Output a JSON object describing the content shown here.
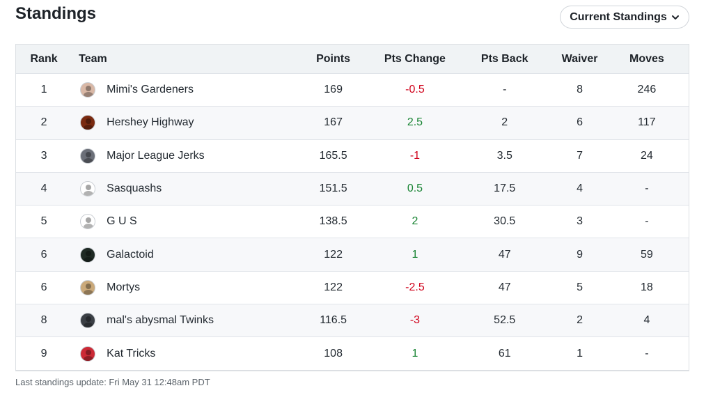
{
  "header": {
    "title": "Standings",
    "view_label": "Current Standings"
  },
  "columns": {
    "rank": "Rank",
    "team": "Team",
    "points": "Points",
    "pts_change": "Pts Change",
    "pts_back": "Pts Back",
    "waiver": "Waiver",
    "moves": "Moves"
  },
  "rows": [
    {
      "rank": "1",
      "team": "Mimi's Gardeners",
      "points": "169",
      "pts_change": "-0.5",
      "change_dir": "neg",
      "pts_back": "-",
      "waiver": "8",
      "moves": "246",
      "avatar_color": "#d9b8a6",
      "avatar_icon": "person-photo-icon"
    },
    {
      "rank": "2",
      "team": "Hershey Highway",
      "points": "167",
      "pts_change": "2.5",
      "change_dir": "pos",
      "pts_back": "2",
      "waiver": "6",
      "moves": "117",
      "avatar_color": "#7a2a10",
      "avatar_icon": "badge-logo-icon"
    },
    {
      "rank": "3",
      "team": "Major League Jerks",
      "points": "165.5",
      "pts_change": "-1",
      "change_dir": "neg",
      "pts_back": "3.5",
      "waiver": "7",
      "moves": "24",
      "avatar_color": "#6b6f78",
      "avatar_icon": "person-photo-icon"
    },
    {
      "rank": "4",
      "team": "Sasquashs",
      "points": "151.5",
      "pts_change": "0.5",
      "change_dir": "pos",
      "pts_back": "17.5",
      "waiver": "4",
      "moves": "-",
      "avatar_color": "#ffffff",
      "avatar_icon": "sasquatch-icon"
    },
    {
      "rank": "5",
      "team": "G U S",
      "points": "138.5",
      "pts_change": "2",
      "change_dir": "pos",
      "pts_back": "30.5",
      "waiver": "3",
      "moves": "-",
      "avatar_color": "#ffffff",
      "avatar_icon": "leaf-icon"
    },
    {
      "rank": "6",
      "team": "Galactoid",
      "points": "122",
      "pts_change": "1",
      "change_dir": "pos",
      "pts_back": "47",
      "waiver": "9",
      "moves": "59",
      "avatar_color": "#1f2a24",
      "avatar_icon": "creature-icon"
    },
    {
      "rank": "6",
      "team": "Mortys",
      "points": "122",
      "pts_change": "-2.5",
      "change_dir": "neg",
      "pts_back": "47",
      "waiver": "5",
      "moves": "18",
      "avatar_color": "#caa97a",
      "avatar_icon": "cartoon-face-icon"
    },
    {
      "rank": "8",
      "team": "mal's abysmal Twinks",
      "points": "116.5",
      "pts_change": "-3",
      "change_dir": "neg",
      "pts_back": "52.5",
      "waiver": "2",
      "moves": "4",
      "avatar_color": "#3b3f45",
      "avatar_icon": "skull-icon"
    },
    {
      "rank": "9",
      "team": "Kat Tricks",
      "points": "108",
      "pts_change": "1",
      "change_dir": "pos",
      "pts_back": "61",
      "waiver": "1",
      "moves": "-",
      "avatar_color": "#cc2a36",
      "avatar_icon": "cat-logo-icon"
    }
  ],
  "footer": {
    "last_update": "Last standings update: Fri May 31 12:48am PDT"
  }
}
